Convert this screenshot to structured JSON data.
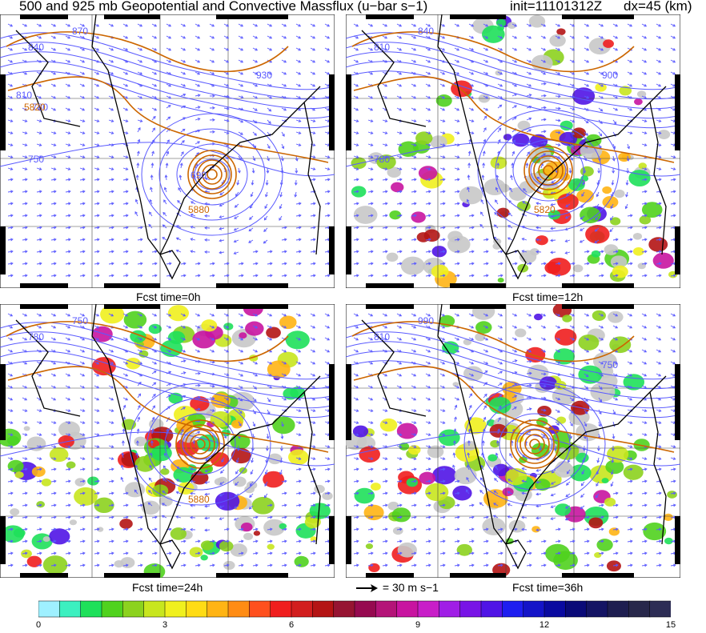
{
  "header": {
    "title": "500 and 925 mb Geopotential and Convective Massflux (u−bar s−1)",
    "init": "init=11101312Z",
    "dx": "dx=45 (km)"
  },
  "panels": [
    {
      "caption": "Fcst time=0h",
      "labels_gph": [
        "5880",
        "5820"
      ],
      "labels_925": [
        "840",
        "870",
        "930",
        "750",
        "690",
        "810",
        "780"
      ]
    },
    {
      "caption": "Fcst time=12h",
      "labels_gph": [
        "5820"
      ],
      "labels_925": [
        "810",
        "840",
        "900",
        "780"
      ]
    },
    {
      "caption": "Fcst time=24h",
      "labels_gph": [
        "5880"
      ],
      "labels_925": [
        "780",
        "750"
      ]
    },
    {
      "caption": "Fcst time=36h",
      "labels_gph": [],
      "labels_925": [
        "810",
        "990",
        "750"
      ]
    }
  ],
  "vector_key": {
    "label": "= 30 m s−1",
    "arrow_icon": "right-arrow-icon"
  },
  "colorbar": {
    "ticks": [
      "0",
      "3",
      "6",
      "9",
      "12",
      "15"
    ],
    "colors": [
      "#9ff0ff",
      "#3cf0c0",
      "#1ee05a",
      "#50d21e",
      "#8cd21e",
      "#c8e61e",
      "#f0f01e",
      "#ffdc14",
      "#ffb414",
      "#ff8c14",
      "#ff501e",
      "#f01e1e",
      "#d21e1e",
      "#b41414",
      "#961432",
      "#960a50",
      "#b41478",
      "#c814a0",
      "#c81ec8",
      "#a01ee6",
      "#7814e6",
      "#5014e6",
      "#1e1ef0",
      "#1414c8",
      "#0a0aa0",
      "#0a0a78",
      "#141464",
      "#1e1e50",
      "#28284b",
      "#2d2d55"
    ],
    "contour_color_500mb": "#cc6600",
    "contour_color_925mb": "#5a5aff",
    "coast_color": "#000000"
  }
}
